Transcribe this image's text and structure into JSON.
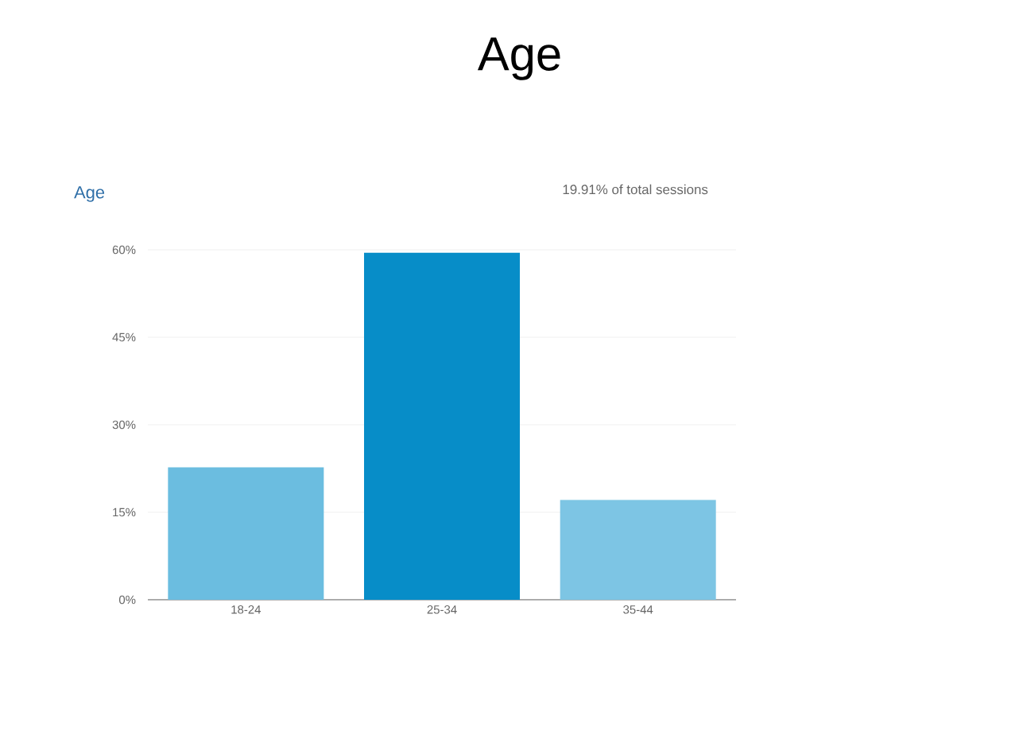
{
  "chart_data": {
    "type": "bar",
    "title": "Age",
    "subtitle": "Age",
    "annotations": [
      "19.91% of total sessions"
    ],
    "categories": [
      "18-24",
      "25-34",
      "35-44"
    ],
    "values": [
      22.7,
      59.5,
      17.1
    ],
    "colors": [
      "#6bbde0",
      "#078dc8",
      "#7dc5e4"
    ],
    "ylim": [
      0,
      60
    ],
    "yticks": [
      {
        "value": 0,
        "label": "0%"
      },
      {
        "value": 15,
        "label": "15%"
      },
      {
        "value": 30,
        "label": "30%"
      },
      {
        "value": 45,
        "label": "45%"
      },
      {
        "value": 60,
        "label": "60%"
      }
    ],
    "grid": "y"
  }
}
